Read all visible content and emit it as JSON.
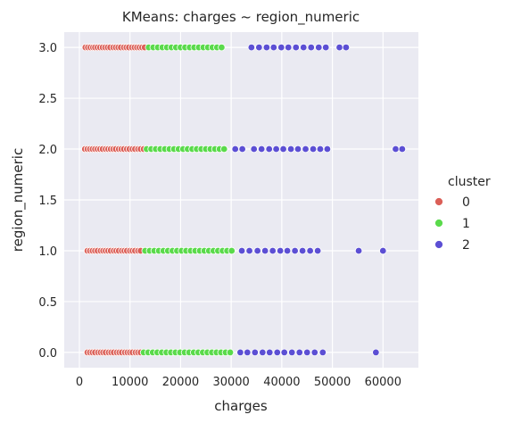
{
  "chart_data": {
    "type": "scatter",
    "title": "KMeans: charges ~ region_numeric",
    "xlabel": "charges",
    "ylabel": "region_numeric",
    "xlim": [
      -3000,
      67000
    ],
    "ylim": [
      -0.15,
      3.15
    ],
    "xticks": [
      0,
      10000,
      20000,
      30000,
      40000,
      50000,
      60000
    ],
    "yticks": [
      0.0,
      0.5,
      1.0,
      1.5,
      2.0,
      2.5,
      3.0
    ],
    "xtick_labels": [
      "0",
      "10000",
      "20000",
      "30000",
      "40000",
      "50000",
      "60000"
    ],
    "ytick_labels": [
      "0.0",
      "0.5",
      "1.0",
      "1.5",
      "2.0",
      "2.5",
      "3.0"
    ],
    "grid": true,
    "legend": {
      "title": "cluster",
      "placement": "right"
    },
    "series": [
      {
        "name": "0",
        "color": "#db5f57",
        "points": [
          [
            1200,
            3
          ],
          [
            1700,
            3
          ],
          [
            2200,
            3
          ],
          [
            2700,
            3
          ],
          [
            3100,
            3
          ],
          [
            3600,
            3
          ],
          [
            4100,
            3
          ],
          [
            4600,
            3
          ],
          [
            5100,
            3
          ],
          [
            5600,
            3
          ],
          [
            6100,
            3
          ],
          [
            6700,
            3
          ],
          [
            7200,
            3
          ],
          [
            7700,
            3
          ],
          [
            8200,
            3
          ],
          [
            8800,
            3
          ],
          [
            9300,
            3
          ],
          [
            9800,
            3
          ],
          [
            10400,
            3
          ],
          [
            10900,
            3
          ],
          [
            11400,
            3
          ],
          [
            11900,
            3
          ],
          [
            12400,
            3
          ],
          [
            12900,
            3
          ],
          [
            1100,
            2
          ],
          [
            1600,
            2
          ],
          [
            2100,
            2
          ],
          [
            2600,
            2
          ],
          [
            3100,
            2
          ],
          [
            3600,
            2
          ],
          [
            4100,
            2
          ],
          [
            4600,
            2
          ],
          [
            5200,
            2
          ],
          [
            5700,
            2
          ],
          [
            6200,
            2
          ],
          [
            6700,
            2
          ],
          [
            7200,
            2
          ],
          [
            7800,
            2
          ],
          [
            8300,
            2
          ],
          [
            8800,
            2
          ],
          [
            9400,
            2
          ],
          [
            9900,
            2
          ],
          [
            10500,
            2
          ],
          [
            11000,
            2
          ],
          [
            11600,
            2
          ],
          [
            12100,
            2
          ],
          [
            12700,
            2
          ],
          [
            1600,
            1
          ],
          [
            2100,
            1
          ],
          [
            2600,
            1
          ],
          [
            3100,
            1
          ],
          [
            3600,
            1
          ],
          [
            4200,
            1
          ],
          [
            4700,
            1
          ],
          [
            5200,
            1
          ],
          [
            5700,
            1
          ],
          [
            6200,
            1
          ],
          [
            6800,
            1
          ],
          [
            7300,
            1
          ],
          [
            7800,
            1
          ],
          [
            8400,
            1
          ],
          [
            8900,
            1
          ],
          [
            9400,
            1
          ],
          [
            10000,
            1
          ],
          [
            10500,
            1
          ],
          [
            11000,
            1
          ],
          [
            11600,
            1
          ],
          [
            12100,
            1
          ],
          [
            1600,
            0
          ],
          [
            2100,
            0
          ],
          [
            2600,
            0
          ],
          [
            3100,
            0
          ],
          [
            3700,
            0
          ],
          [
            4200,
            0
          ],
          [
            4700,
            0
          ],
          [
            5200,
            0
          ],
          [
            5800,
            0
          ],
          [
            6300,
            0
          ],
          [
            6800,
            0
          ],
          [
            7400,
            0
          ],
          [
            7900,
            0
          ],
          [
            8400,
            0
          ],
          [
            9000,
            0
          ],
          [
            9500,
            0
          ],
          [
            10000,
            0
          ],
          [
            10500,
            0
          ],
          [
            11100,
            0
          ],
          [
            11600,
            0
          ],
          [
            12100,
            0
          ]
        ]
      },
      {
        "name": "1",
        "color": "#5ada4b",
        "points": [
          [
            13700,
            3
          ],
          [
            14600,
            3
          ],
          [
            15500,
            3
          ],
          [
            16400,
            3
          ],
          [
            17300,
            3
          ],
          [
            18200,
            3
          ],
          [
            19100,
            3
          ],
          [
            20000,
            3
          ],
          [
            20900,
            3
          ],
          [
            21800,
            3
          ],
          [
            22700,
            3
          ],
          [
            23600,
            3
          ],
          [
            24500,
            3
          ],
          [
            25400,
            3
          ],
          [
            26300,
            3
          ],
          [
            27200,
            3
          ],
          [
            28100,
            3
          ],
          [
            13300,
            2
          ],
          [
            14200,
            2
          ],
          [
            15100,
            2
          ],
          [
            16000,
            2
          ],
          [
            16900,
            2
          ],
          [
            17800,
            2
          ],
          [
            18700,
            2
          ],
          [
            19600,
            2
          ],
          [
            20500,
            2
          ],
          [
            21400,
            2
          ],
          [
            22300,
            2
          ],
          [
            23200,
            2
          ],
          [
            24100,
            2
          ],
          [
            25000,
            2
          ],
          [
            25900,
            2
          ],
          [
            26800,
            2
          ],
          [
            27700,
            2
          ],
          [
            28600,
            2
          ],
          [
            13000,
            1
          ],
          [
            13900,
            1
          ],
          [
            14800,
            1
          ],
          [
            15700,
            1
          ],
          [
            16600,
            1
          ],
          [
            17500,
            1
          ],
          [
            18400,
            1
          ],
          [
            19300,
            1
          ],
          [
            20200,
            1
          ],
          [
            21100,
            1
          ],
          [
            22000,
            1
          ],
          [
            22900,
            1
          ],
          [
            23800,
            1
          ],
          [
            24700,
            1
          ],
          [
            25600,
            1
          ],
          [
            26500,
            1
          ],
          [
            27400,
            1
          ],
          [
            28300,
            1
          ],
          [
            29200,
            1
          ],
          [
            30100,
            1
          ],
          [
            12700,
            0
          ],
          [
            13600,
            0
          ],
          [
            14500,
            0
          ],
          [
            15400,
            0
          ],
          [
            16300,
            0
          ],
          [
            17200,
            0
          ],
          [
            18100,
            0
          ],
          [
            19000,
            0
          ],
          [
            19900,
            0
          ],
          [
            20800,
            0
          ],
          [
            21700,
            0
          ],
          [
            22600,
            0
          ],
          [
            23500,
            0
          ],
          [
            24400,
            0
          ],
          [
            25300,
            0
          ],
          [
            26200,
            0
          ],
          [
            27100,
            0
          ],
          [
            28000,
            0
          ],
          [
            28900,
            0
          ],
          [
            29800,
            0
          ]
        ]
      },
      {
        "name": "2",
        "color": "#5c4fd4",
        "points": [
          [
            34000,
            3
          ],
          [
            35500,
            3
          ],
          [
            37000,
            3
          ],
          [
            38400,
            3
          ],
          [
            39900,
            3
          ],
          [
            41300,
            3
          ],
          [
            42800,
            3
          ],
          [
            44300,
            3
          ],
          [
            45800,
            3
          ],
          [
            47300,
            3
          ],
          [
            48700,
            3
          ],
          [
            51400,
            3
          ],
          [
            52700,
            3
          ],
          [
            30800,
            2
          ],
          [
            32200,
            2
          ],
          [
            34500,
            2
          ],
          [
            36000,
            2
          ],
          [
            37500,
            2
          ],
          [
            38900,
            2
          ],
          [
            40300,
            2
          ],
          [
            41800,
            2
          ],
          [
            43200,
            2
          ],
          [
            44700,
            2
          ],
          [
            46200,
            2
          ],
          [
            47600,
            2
          ],
          [
            49000,
            2
          ],
          [
            62500,
            2
          ],
          [
            63800,
            2
          ],
          [
            32100,
            1
          ],
          [
            33600,
            1
          ],
          [
            35200,
            1
          ],
          [
            36700,
            1
          ],
          [
            38200,
            1
          ],
          [
            39700,
            1
          ],
          [
            41100,
            1
          ],
          [
            42600,
            1
          ],
          [
            44100,
            1
          ],
          [
            45600,
            1
          ],
          [
            47100,
            1
          ],
          [
            55200,
            1
          ],
          [
            60000,
            1
          ],
          [
            31800,
            0
          ],
          [
            33200,
            0
          ],
          [
            34700,
            0
          ],
          [
            36200,
            0
          ],
          [
            37600,
            0
          ],
          [
            39100,
            0
          ],
          [
            40500,
            0
          ],
          [
            42000,
            0
          ],
          [
            43500,
            0
          ],
          [
            45000,
            0
          ],
          [
            46500,
            0
          ],
          [
            48100,
            0
          ],
          [
            58600,
            0
          ]
        ]
      }
    ]
  }
}
